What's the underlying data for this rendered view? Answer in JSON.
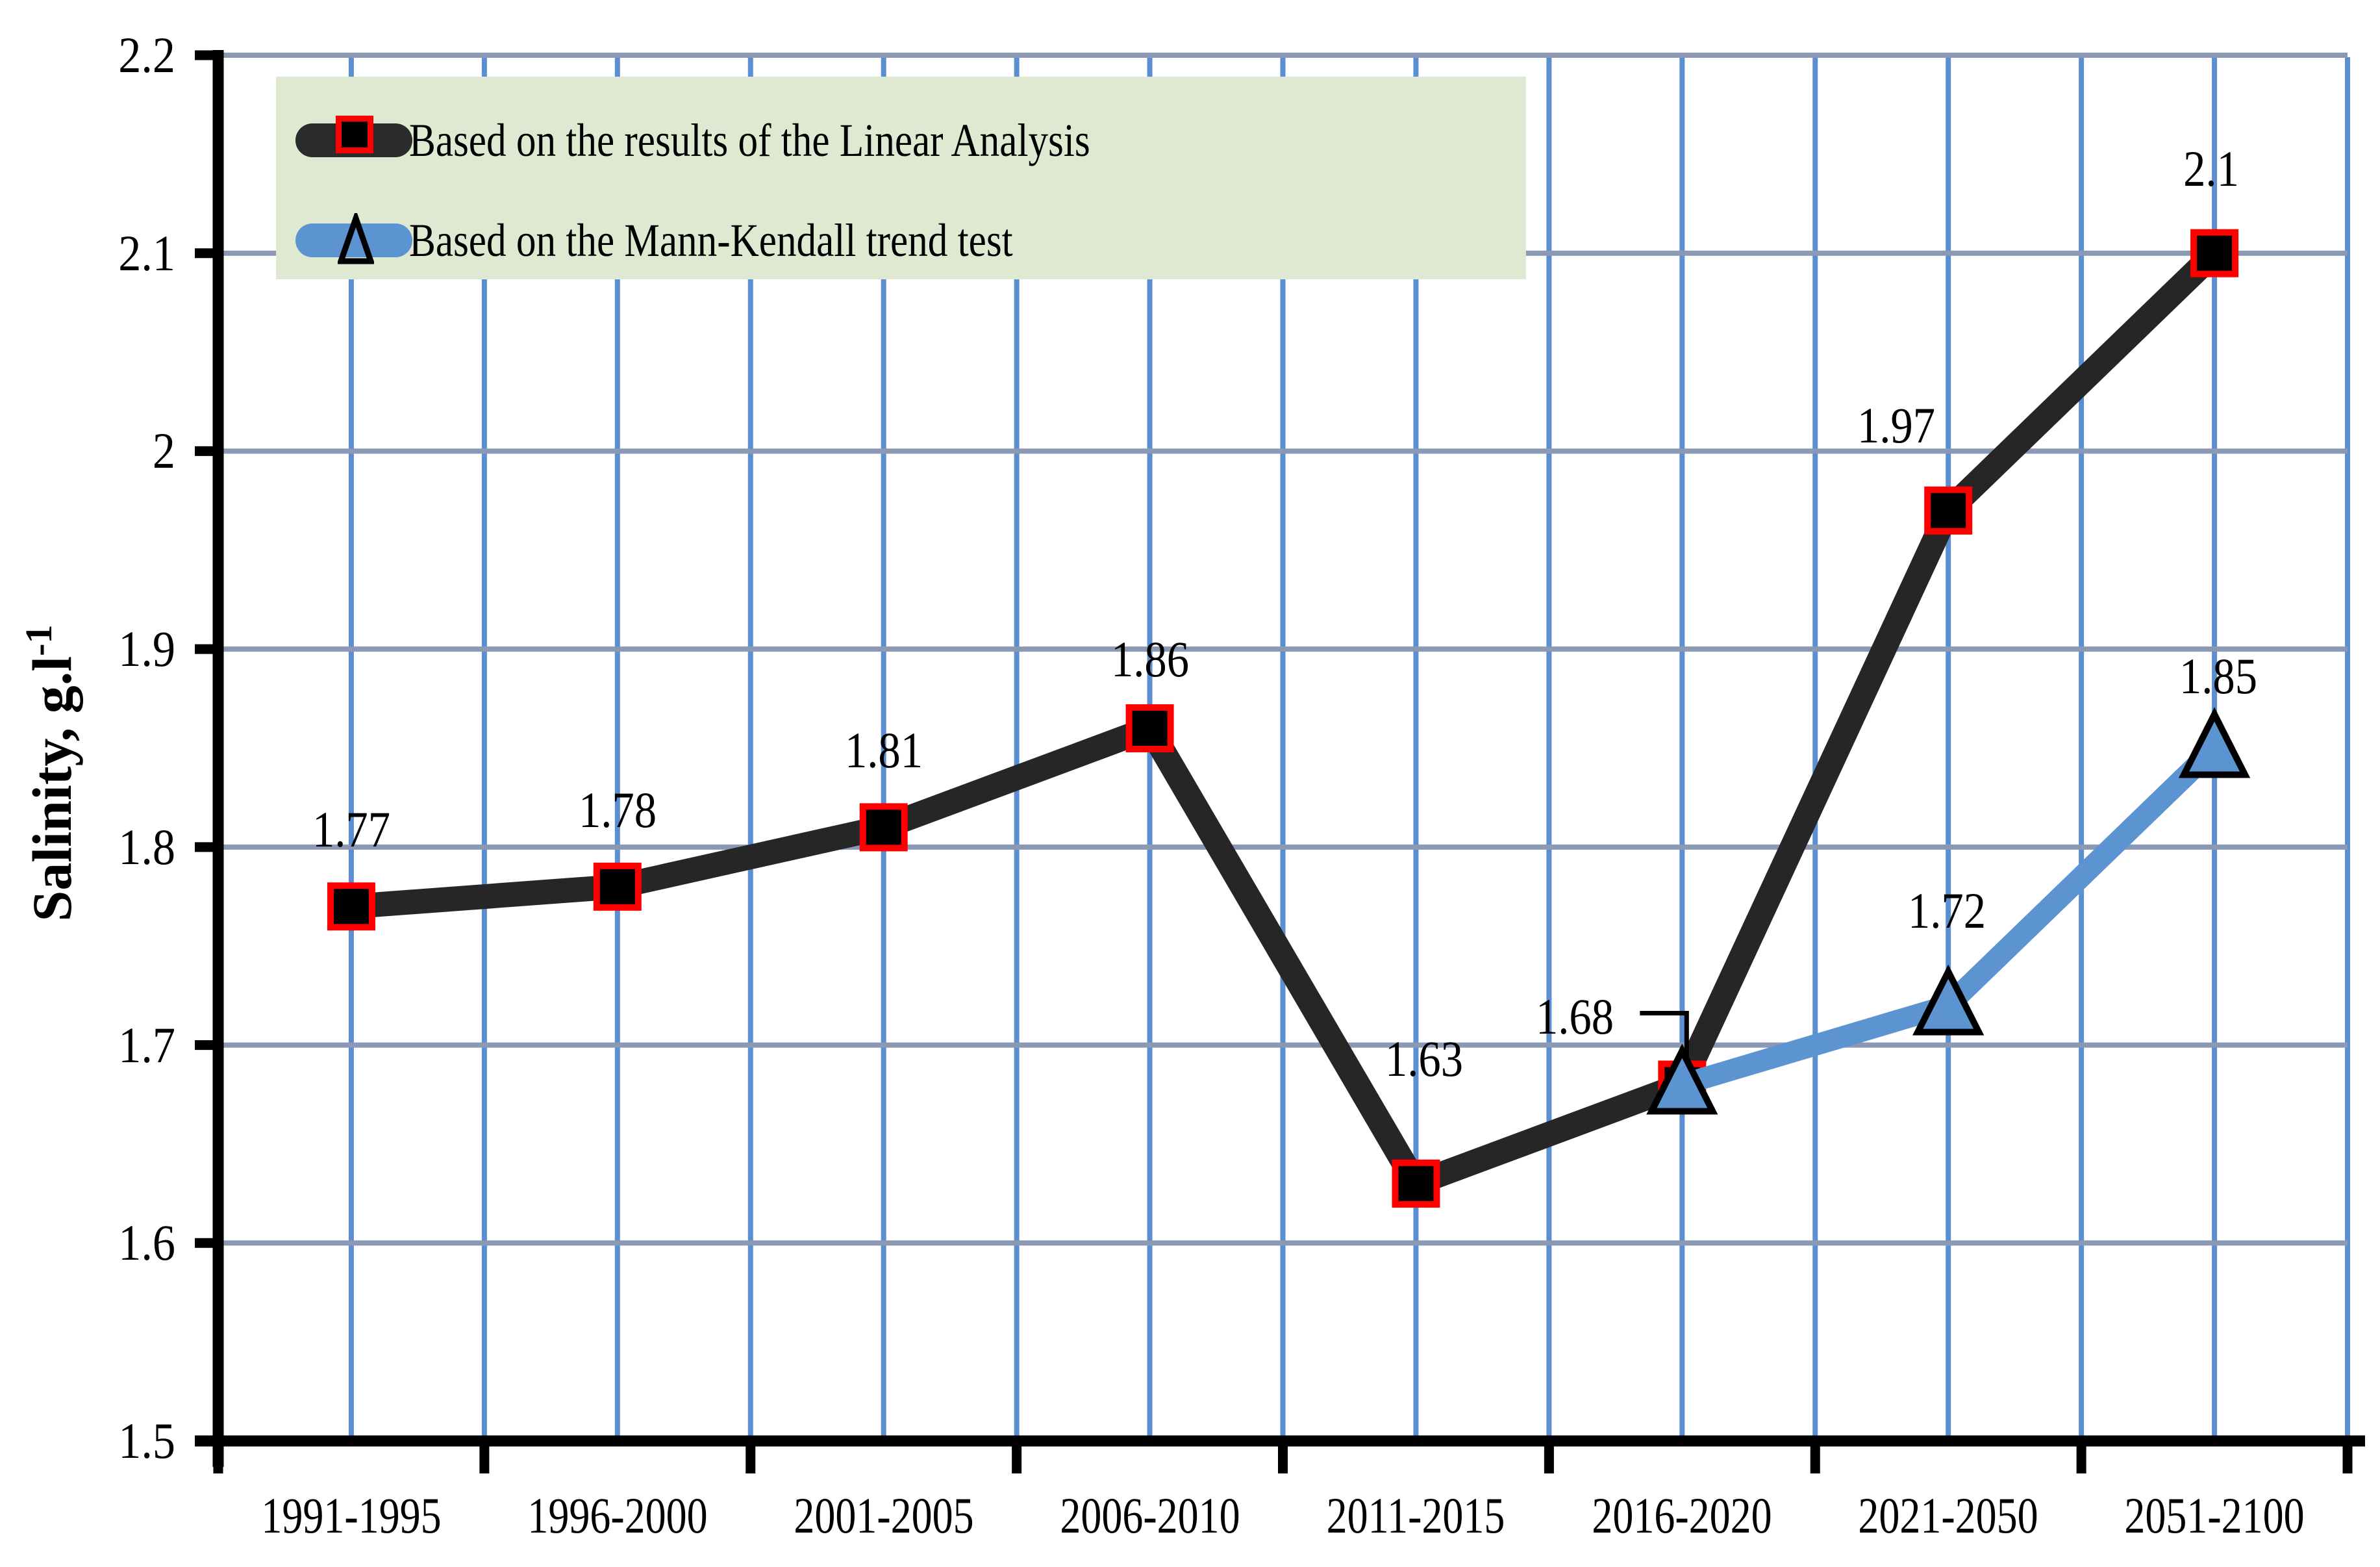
{
  "chart_data": {
    "type": "line",
    "categories": [
      "1991-1995",
      "1996-2000",
      "2001-2005",
      "2006-2010",
      "2011-2015",
      "2016-2020",
      "2021-2050",
      "2051-2100"
    ],
    "series": [
      {
        "name": "Based on the results of the Linear Analysis",
        "values": [
          1.77,
          1.78,
          1.81,
          1.86,
          1.63,
          1.68,
          1.97,
          2.1
        ],
        "labels": [
          "1.77",
          "1.78",
          "1.81",
          "1.86",
          "1.63",
          "1.68",
          "1.97",
          "2.1"
        ],
        "line_color": "#262626",
        "marker": "square",
        "marker_fill": "#000000",
        "marker_border": "#ff0000"
      },
      {
        "name": "Based on the Mann-Kendall trend test",
        "values": [
          null,
          null,
          null,
          null,
          null,
          1.68,
          1.72,
          1.85
        ],
        "labels": [
          null,
          null,
          null,
          null,
          null,
          null,
          "1.72",
          "1.85"
        ],
        "line_color": "#5b94d0",
        "marker": "triangle",
        "marker_fill": "#5b94d0",
        "marker_border": "#000000"
      }
    ],
    "annotation": {
      "label": "1.68",
      "category": "2016-2020",
      "placement": "left-with-leader"
    },
    "ylabel_main": "Salinity, g.l",
    "ylabel_sup": "-1",
    "y_ticks": [
      "2.2",
      "2.1",
      "2",
      "1.9",
      "1.8",
      "1.7",
      "1.6",
      "1.5"
    ],
    "y_tick_values": [
      2.2,
      2.1,
      2.0,
      1.9,
      1.8,
      1.7,
      1.6,
      1.5
    ],
    "ylim": [
      1.5,
      2.2
    ],
    "grid": {
      "vertical": "half-category interval",
      "horizontal": "every 0.1"
    },
    "legend_position": "top-left",
    "colors": {
      "vertical_grid": "#5b8fd2",
      "horizontal_grid": "#8b99b5",
      "axis": "#000000",
      "legend_bg": "#dfe9d2",
      "leader_line": "#000000"
    }
  }
}
